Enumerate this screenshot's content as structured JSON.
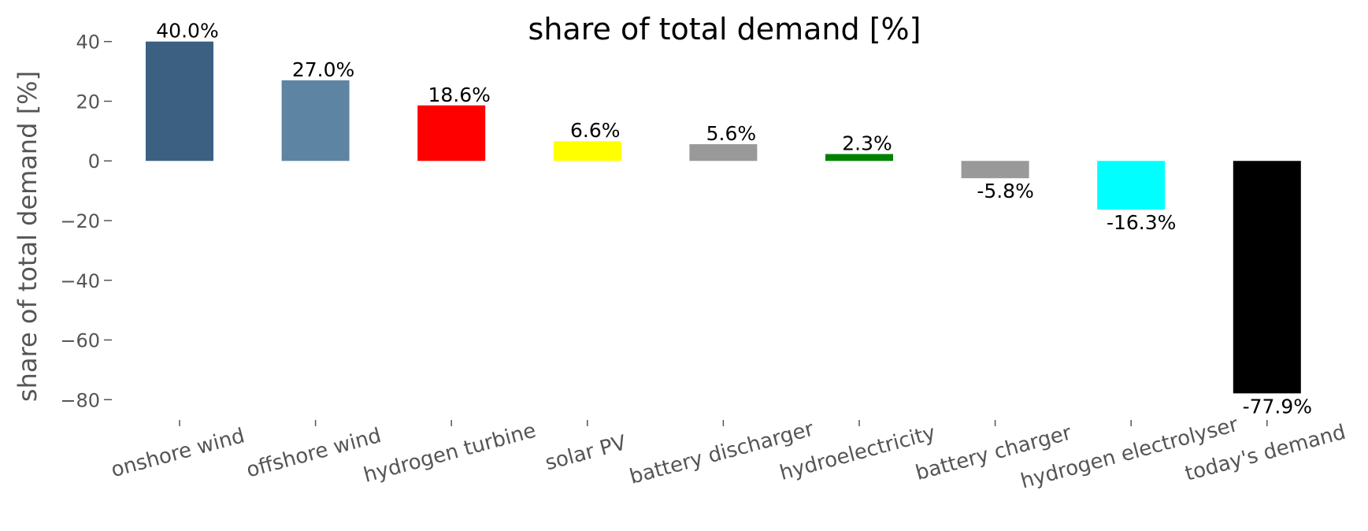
{
  "chart_data": {
    "type": "bar",
    "title": "share of total demand [%]",
    "xlabel": "",
    "ylabel": "share of total demand [%]",
    "ylim": [
      -86,
      46
    ],
    "yticks": [
      40,
      20,
      0,
      -20,
      -40,
      -60,
      -80
    ],
    "grid": false,
    "categories": [
      "onshore wind",
      "offshore wind",
      "hydrogen turbine",
      "solar PV",
      "battery discharger",
      "hydroelectricity",
      "battery charger",
      "hydrogen electrolyser",
      "today's demand"
    ],
    "values": [
      40.0,
      27.0,
      18.6,
      6.6,
      5.6,
      2.3,
      -5.8,
      -16.3,
      -77.9
    ],
    "data_labels": [
      "40.0%",
      "27.0%",
      "18.6%",
      "6.6%",
      "5.6%",
      "2.3%",
      "-5.8%",
      "-16.3%",
      "-77.9%"
    ],
    "colors": [
      "#3b6082",
      "#5e84a3",
      "#ff0000",
      "#ffff00",
      "#999999",
      "#008000",
      "#999999",
      "#00ffff",
      "#000000"
    ]
  }
}
